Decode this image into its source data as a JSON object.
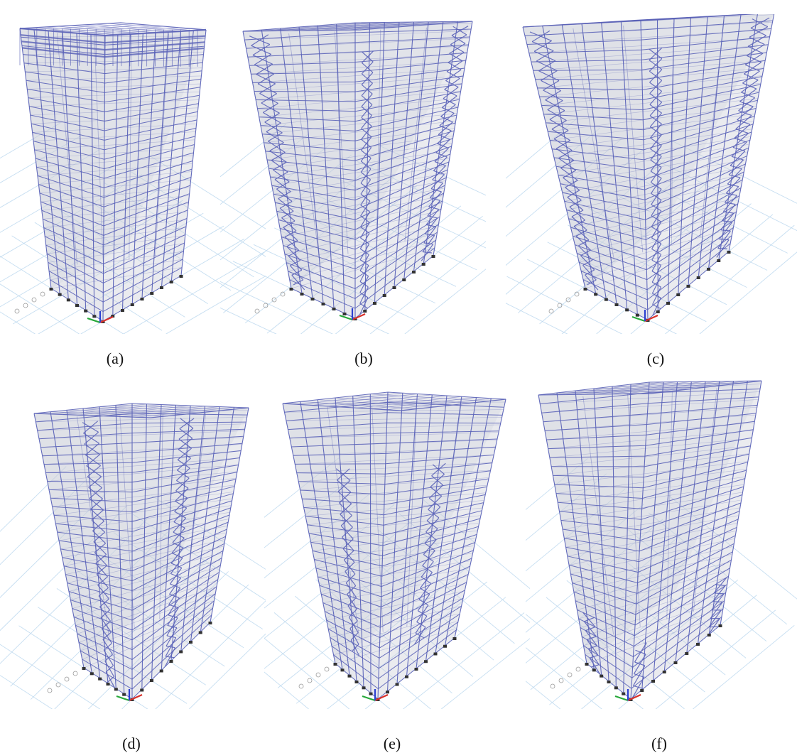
{
  "figure": {
    "panels": [
      {
        "caption": "(a)",
        "bracing": "none",
        "dense_top": true
      },
      {
        "caption": "(b)",
        "bracing": "full-height-corners-and-core",
        "dense_top": false
      },
      {
        "caption": "(c)",
        "bracing": "full-height-corners-and-core",
        "dense_top": false
      },
      {
        "caption": "(d)",
        "bracing": "inner-bays-full-height",
        "dense_top": false
      },
      {
        "caption": "(e)",
        "bracing": "inner-bays-partial",
        "dense_top": false
      },
      {
        "caption": "(f)",
        "bracing": "base-only",
        "dense_top": false
      }
    ],
    "colors": {
      "frame": "#5b63b8",
      "slab": "#c9cbd6",
      "ground_grid": "#bcd8ee",
      "support": "#333333",
      "axis_x": "#d8302a",
      "axis_y": "#27a83a",
      "axis_z": "#2b3fd1"
    },
    "stories": 30
  }
}
